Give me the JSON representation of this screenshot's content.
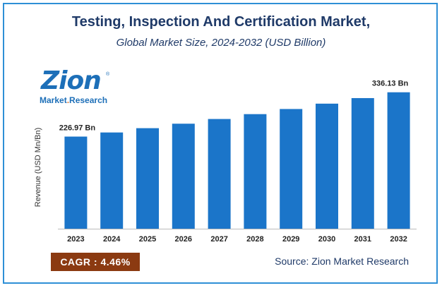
{
  "chart_data": {
    "type": "bar",
    "title": "Testing, Inspection And Certification Market,",
    "subtitle": "Global Market Size, 2024-2032 (USD Billion)",
    "xlabel": "",
    "ylabel": "Revenue (USD Mn/Bn)",
    "categories": [
      "2023",
      "2024",
      "2025",
      "2026",
      "2027",
      "2028",
      "2029",
      "2030",
      "2031",
      "2032"
    ],
    "values": [
      226.97,
      237.1,
      247.7,
      258.7,
      270.3,
      282.3,
      294.9,
      308.1,
      321.8,
      336.13
    ],
    "data_labels": [
      {
        "index": 0,
        "text": "226.97 Bn"
      },
      {
        "index": 9,
        "text": "336.13 Bn"
      }
    ],
    "ylim": [
      0,
      360
    ],
    "grid": false,
    "legend": "none",
    "bar_color": "#1b75c9"
  },
  "logo": {
    "word": "Zion",
    "sub_part1": "Market",
    "sub_dot": ".",
    "sub_part2": "Research",
    "registered": "®"
  },
  "footer": {
    "cagr": "CAGR : 4.46%",
    "source": "Source: Zion Market Research"
  },
  "colors": {
    "border": "#2e8fd6",
    "title": "#1f3a68",
    "cagr_bg": "#8b3a11"
  }
}
